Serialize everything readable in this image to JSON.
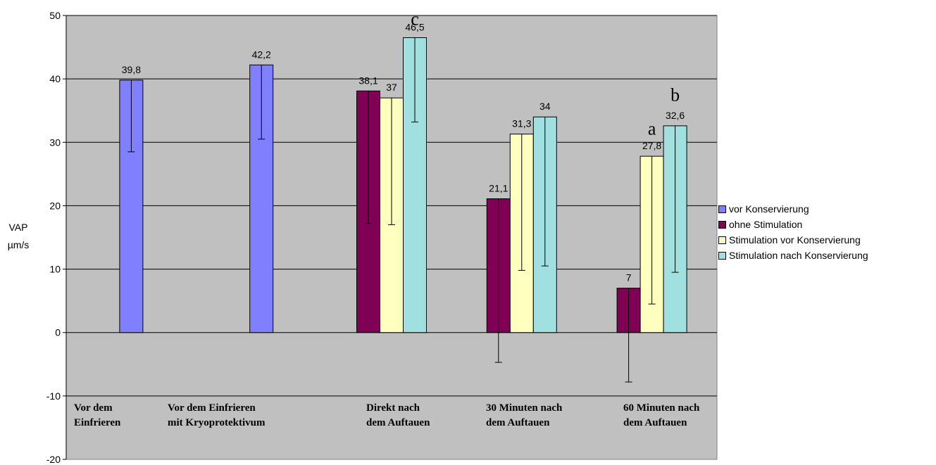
{
  "chart_data": {
    "type": "bar",
    "ylabel": "VAP",
    "yunit": "µm/s",
    "ylim": [
      -20,
      50
    ],
    "yticks": [
      -20,
      -10,
      0,
      10,
      20,
      30,
      40,
      50
    ],
    "grid": true,
    "legend_position": "right",
    "background": "#c0c0c0",
    "categories": [
      [
        "Vor dem",
        "Einfrieren"
      ],
      [
        "Vor dem Einfrieren",
        "mit Kryoprotektivum"
      ],
      [
        "Direkt nach",
        "dem Auftauen"
      ],
      [
        "30  Minuten nach",
        "dem Auftauen"
      ],
      [
        "60 Minuten nach",
        "dem Auftauen"
      ]
    ],
    "series": [
      {
        "name": "vor Konservierung",
        "color": "#8080ff",
        "values": [
          39.8,
          42.2,
          null,
          null,
          null
        ],
        "labels": [
          "39,8",
          "42,2",
          null,
          null,
          null
        ],
        "err_low": [
          28.5,
          30.5,
          null,
          null,
          null
        ]
      },
      {
        "name": "ohne Stimulation",
        "color": "#800055",
        "values": [
          null,
          null,
          38.1,
          21.1,
          7
        ],
        "labels": [
          null,
          null,
          "38,1",
          "21,1",
          "7"
        ],
        "err_low": [
          null,
          null,
          17.2,
          -4.7,
          -7.8
        ]
      },
      {
        "name": "Stimulation vor Konservierung",
        "color": "#ffffc0",
        "values": [
          null,
          null,
          37,
          31.3,
          27.8
        ],
        "labels": [
          null,
          null,
          "37",
          "31,3",
          "27,8"
        ],
        "err_low": [
          null,
          null,
          17,
          9.8,
          4.5
        ]
      },
      {
        "name": "Stimulation nach Konservierung",
        "color": "#a0e0e0",
        "values": [
          null,
          null,
          46.5,
          34,
          32.6
        ],
        "labels": [
          null,
          null,
          "46,5",
          "34",
          "32,6"
        ],
        "err_low": [
          null,
          null,
          33.2,
          10.5,
          9.5
        ]
      }
    ],
    "annotations": [
      {
        "text": "c",
        "category": 2,
        "series": 3,
        "value": 48.5
      },
      {
        "text": "a",
        "category": 4,
        "series": 2,
        "value": 31.2
      },
      {
        "text": "b",
        "category": 4,
        "series": 3,
        "value": 36.5
      }
    ]
  }
}
